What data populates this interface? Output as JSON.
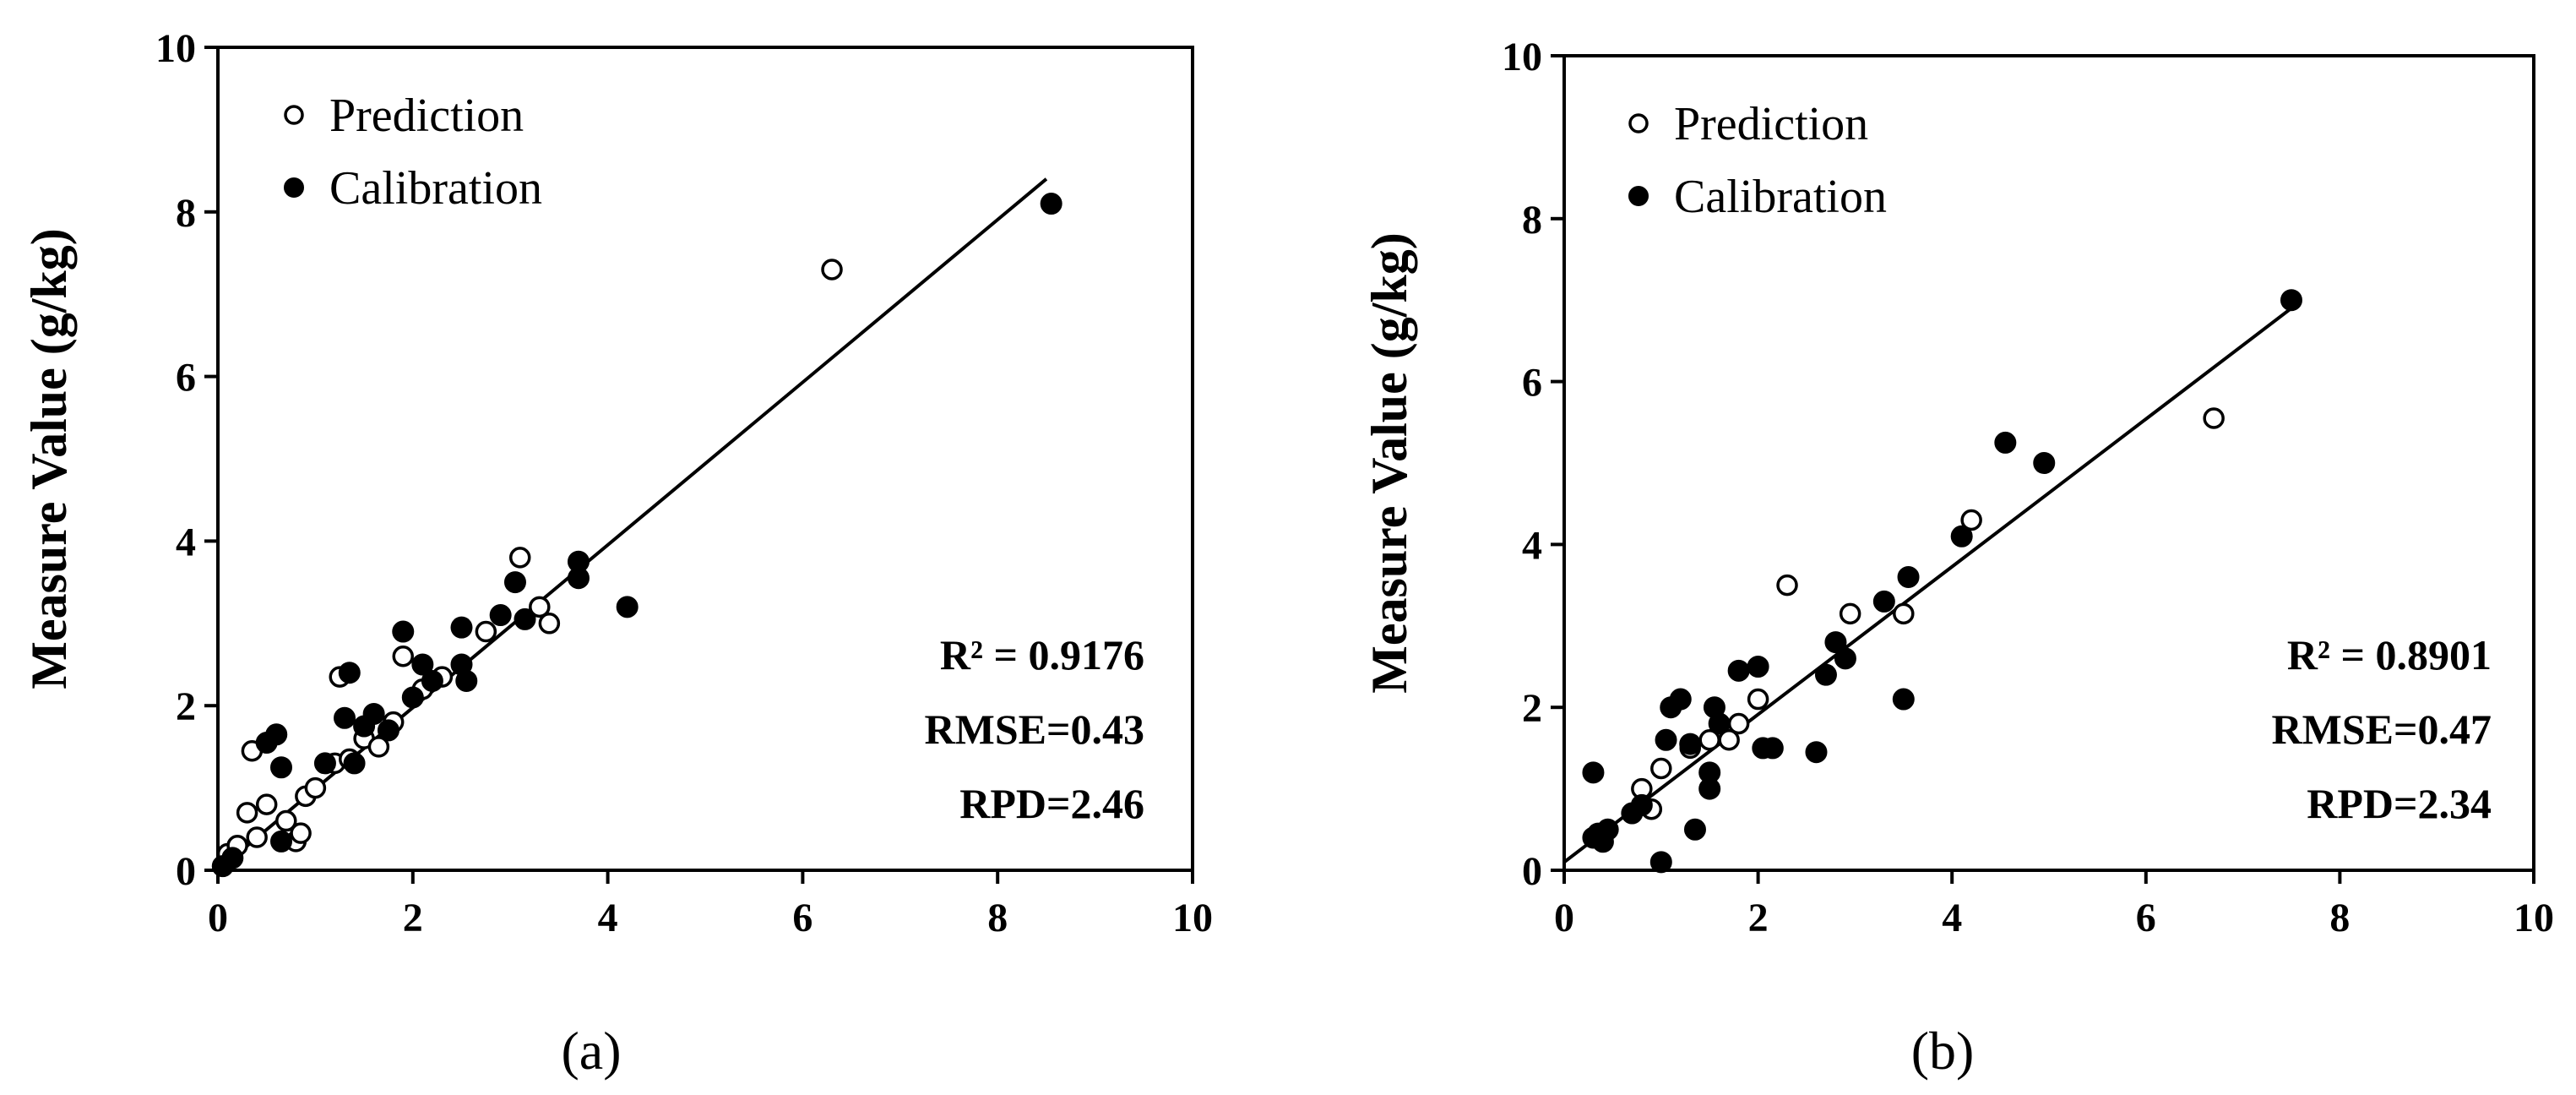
{
  "chart_data": [
    {
      "type": "scatter",
      "panel_label": "(a)",
      "ylabel": "Measure Value (g/kg)",
      "xlabel": "",
      "xlim": [
        0,
        10
      ],
      "ylim": [
        0,
        10
      ],
      "xticks": [
        "0",
        "2",
        "4",
        "6",
        "8",
        "10"
      ],
      "yticks": [
        "0",
        "2",
        "4",
        "6",
        "8",
        "10"
      ],
      "legend_position": "top-left",
      "legend": [
        {
          "name": "Prediction",
          "marker": "open-circle"
        },
        {
          "name": "Calibration",
          "marker": "filled-circle"
        }
      ],
      "stats": [
        "R² = 0.9176",
        "RMSE=0.43",
        "RPD=2.46"
      ],
      "fit_line": {
        "x": [
          0.0,
          8.5
        ],
        "y": [
          0.0,
          8.4
        ]
      },
      "series": [
        {
          "name": "Prediction",
          "marker": "open-circle",
          "points": [
            [
              0.1,
              0.2
            ],
            [
              0.2,
              0.3
            ],
            [
              0.3,
              0.7
            ],
            [
              0.35,
              1.45
            ],
            [
              0.4,
              0.4
            ],
            [
              0.5,
              0.8
            ],
            [
              0.7,
              0.6
            ],
            [
              0.8,
              0.35
            ],
            [
              0.85,
              0.45
            ],
            [
              0.9,
              0.9
            ],
            [
              1.0,
              1.0
            ],
            [
              1.2,
              1.3
            ],
            [
              1.25,
              2.35
            ],
            [
              1.35,
              1.35
            ],
            [
              1.5,
              1.6
            ],
            [
              1.65,
              1.5
            ],
            [
              1.8,
              1.8
            ],
            [
              1.9,
              2.6
            ],
            [
              2.1,
              2.2
            ],
            [
              2.3,
              2.35
            ],
            [
              2.75,
              2.9
            ],
            [
              3.1,
              3.8
            ],
            [
              3.3,
              3.2
            ],
            [
              3.4,
              3.0
            ],
            [
              6.3,
              7.3
            ]
          ]
        },
        {
          "name": "Calibration",
          "marker": "filled-circle",
          "points": [
            [
              0.05,
              0.05
            ],
            [
              0.15,
              0.15
            ],
            [
              0.5,
              1.55
            ],
            [
              0.6,
              1.65
            ],
            [
              0.65,
              0.35
            ],
            [
              0.65,
              1.25
            ],
            [
              1.1,
              1.3
            ],
            [
              1.3,
              1.85
            ],
            [
              1.35,
              2.4
            ],
            [
              1.4,
              1.3
            ],
            [
              1.5,
              1.75
            ],
            [
              1.6,
              1.9
            ],
            [
              1.75,
              1.7
            ],
            [
              1.9,
              2.9
            ],
            [
              2.0,
              2.1
            ],
            [
              2.1,
              2.5
            ],
            [
              2.2,
              2.3
            ],
            [
              2.5,
              2.5
            ],
            [
              2.5,
              2.95
            ],
            [
              2.55,
              2.3
            ],
            [
              2.9,
              3.1
            ],
            [
              3.05,
              3.5
            ],
            [
              3.15,
              3.05
            ],
            [
              3.7,
              3.55
            ],
            [
              3.7,
              3.75
            ],
            [
              4.2,
              3.2
            ],
            [
              8.55,
              8.1
            ]
          ]
        }
      ]
    },
    {
      "type": "scatter",
      "panel_label": "(b)",
      "ylabel": "Measure Value (g/kg)",
      "xlabel": "",
      "xlim": [
        0,
        10
      ],
      "ylim": [
        0,
        10
      ],
      "xticks": [
        "0",
        "2",
        "4",
        "6",
        "8",
        "10"
      ],
      "yticks": [
        "0",
        "2",
        "4",
        "6",
        "8",
        "10"
      ],
      "legend_position": "top-left",
      "legend": [
        {
          "name": "Prediction",
          "marker": "open-circle"
        },
        {
          "name": "Calibration",
          "marker": "filled-circle"
        }
      ],
      "stats": [
        "R² = 0.8901",
        "RMSE=0.47",
        "RPD=2.34"
      ],
      "fit_line": {
        "x": [
          0.0,
          7.5
        ],
        "y": [
          0.1,
          6.9
        ]
      },
      "series": [
        {
          "name": "Prediction",
          "marker": "open-circle",
          "points": [
            [
              0.8,
              1.0
            ],
            [
              0.9,
              0.75
            ],
            [
              1.0,
              1.25
            ],
            [
              1.3,
              1.5
            ],
            [
              1.5,
              1.6
            ],
            [
              1.7,
              1.6
            ],
            [
              1.8,
              1.8
            ],
            [
              2.0,
              2.1
            ],
            [
              2.3,
              3.5
            ],
            [
              2.95,
              3.15
            ],
            [
              3.5,
              3.15
            ],
            [
              4.2,
              4.3
            ],
            [
              6.7,
              5.55
            ]
          ]
        },
        {
          "name": "Calibration",
          "marker": "filled-circle",
          "points": [
            [
              0.3,
              1.2
            ],
            [
              0.3,
              0.4
            ],
            [
              0.35,
              0.45
            ],
            [
              0.4,
              0.35
            ],
            [
              0.45,
              0.5
            ],
            [
              0.7,
              0.7
            ],
            [
              0.8,
              0.8
            ],
            [
              1.0,
              0.1
            ],
            [
              1.05,
              1.6
            ],
            [
              1.1,
              2.0
            ],
            [
              1.2,
              2.1
            ],
            [
              1.3,
              1.55
            ],
            [
              1.35,
              0.5
            ],
            [
              1.5,
              1.0
            ],
            [
              1.5,
              1.2
            ],
            [
              1.55,
              2.0
            ],
            [
              1.6,
              1.8
            ],
            [
              1.8,
              2.45
            ],
            [
              2.0,
              2.5
            ],
            [
              2.05,
              1.5
            ],
            [
              2.15,
              1.5
            ],
            [
              2.6,
              1.45
            ],
            [
              2.7,
              2.4
            ],
            [
              2.8,
              2.8
            ],
            [
              2.9,
              2.6
            ],
            [
              3.3,
              3.3
            ],
            [
              3.5,
              2.1
            ],
            [
              3.55,
              3.6
            ],
            [
              4.1,
              4.1
            ],
            [
              4.55,
              5.25
            ],
            [
              4.95,
              5.0
            ],
            [
              7.5,
              7.0
            ]
          ]
        }
      ]
    }
  ]
}
